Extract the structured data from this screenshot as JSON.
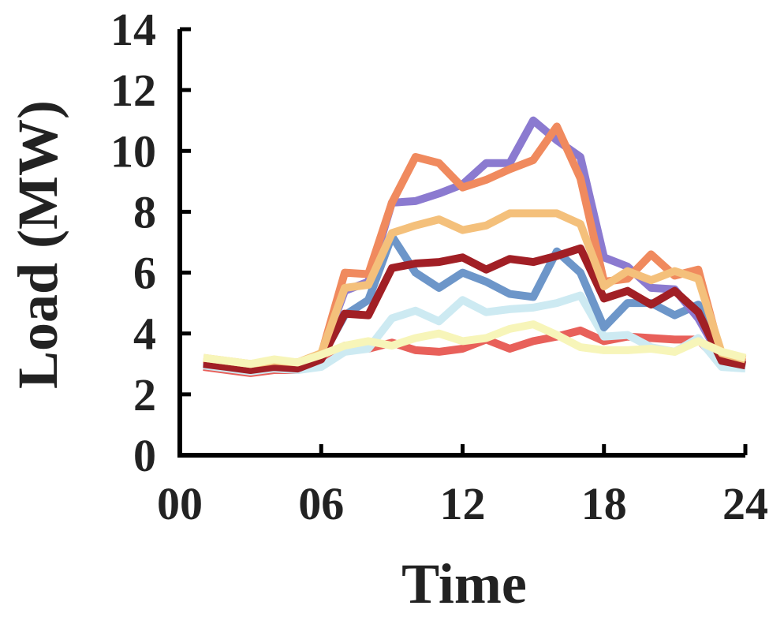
{
  "chart_data": {
    "type": "line",
    "xlabel": "Time",
    "ylabel": "Load (MW)",
    "xlim": [
      0,
      24
    ],
    "ylim": [
      0,
      14
    ],
    "xticks": [
      0,
      6,
      12,
      18,
      24
    ],
    "xtick_labels": [
      "00",
      "06",
      "12",
      "18",
      "24"
    ],
    "yticks": [
      0,
      2,
      4,
      6,
      8,
      10,
      12,
      14
    ],
    "ytick_labels": [
      "0",
      "2",
      "4",
      "6",
      "8",
      "10",
      "12",
      "14"
    ],
    "grid": false,
    "legend": "none",
    "x": [
      1,
      2,
      3,
      4,
      5,
      6,
      7,
      8,
      9,
      10,
      11,
      12,
      13,
      14,
      15,
      16,
      17,
      18,
      19,
      20,
      21,
      22,
      23,
      24
    ],
    "series": [
      {
        "color": "#e8605a",
        "values": [
          2.9,
          2.8,
          2.7,
          2.8,
          2.8,
          3.0,
          3.6,
          3.5,
          3.7,
          3.45,
          3.4,
          3.5,
          3.8,
          3.5,
          3.75,
          3.9,
          4.1,
          3.75,
          3.9,
          3.85,
          3.8,
          3.8,
          3.0,
          2.9
        ]
      },
      {
        "color": "#cdeaf2",
        "values": [
          2.95,
          2.85,
          2.75,
          2.85,
          2.8,
          2.9,
          3.4,
          3.5,
          4.5,
          4.75,
          4.4,
          5.1,
          4.7,
          4.8,
          4.85,
          5.0,
          5.25,
          3.9,
          3.95,
          3.55,
          3.4,
          3.85,
          2.9,
          2.85
        ]
      },
      {
        "color": "#6d96c9",
        "values": [
          3.05,
          2.95,
          2.85,
          2.95,
          2.9,
          3.2,
          4.6,
          5.1,
          7.2,
          6.0,
          5.5,
          6.0,
          5.7,
          5.3,
          5.2,
          6.7,
          6.0,
          4.2,
          5.0,
          5.0,
          4.6,
          4.95,
          3.1,
          2.95
        ]
      },
      {
        "color": "#8b7ad0",
        "values": [
          3.1,
          3.0,
          2.9,
          3.0,
          2.95,
          3.3,
          5.4,
          5.7,
          8.3,
          8.35,
          8.6,
          8.9,
          9.6,
          9.6,
          11.0,
          10.35,
          9.8,
          6.5,
          6.2,
          5.5,
          5.45,
          4.5,
          3.15,
          3.0
        ]
      },
      {
        "color": "#f08a5e",
        "values": [
          3.15,
          3.05,
          2.95,
          3.05,
          3.0,
          3.3,
          6.0,
          5.95,
          8.3,
          9.8,
          9.6,
          8.8,
          9.05,
          9.4,
          9.7,
          10.8,
          9.1,
          5.7,
          5.8,
          6.6,
          5.9,
          6.1,
          3.2,
          3.05
        ]
      },
      {
        "color": "#a11f25",
        "values": [
          3.0,
          2.9,
          2.8,
          2.9,
          2.85,
          3.15,
          4.65,
          4.6,
          6.15,
          6.3,
          6.35,
          6.5,
          6.1,
          6.45,
          6.35,
          6.55,
          6.8,
          5.15,
          5.4,
          4.95,
          5.4,
          4.7,
          3.1,
          2.95
        ]
      },
      {
        "color": "#f4c07b",
        "values": [
          3.2,
          3.1,
          3.0,
          3.1,
          3.05,
          3.35,
          5.5,
          5.6,
          7.3,
          7.55,
          7.75,
          7.4,
          7.55,
          7.95,
          7.95,
          7.95,
          7.6,
          5.55,
          6.05,
          5.75,
          6.05,
          5.8,
          3.35,
          3.15
        ]
      },
      {
        "color": "#f7f5b9",
        "values": [
          3.2,
          3.1,
          3.0,
          3.15,
          3.05,
          3.3,
          3.6,
          3.75,
          3.6,
          3.85,
          4.0,
          3.75,
          3.85,
          4.15,
          4.3,
          3.95,
          3.55,
          3.45,
          3.45,
          3.5,
          3.4,
          3.75,
          3.4,
          3.2
        ]
      }
    ]
  }
}
